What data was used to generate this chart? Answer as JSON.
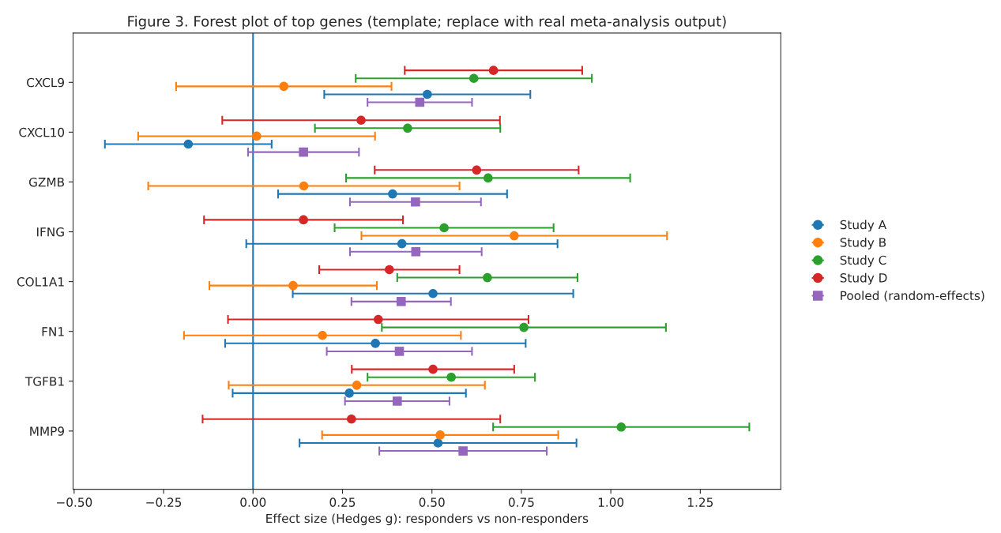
{
  "chart_data": {
    "type": "scatter",
    "orientation": "horizontal",
    "title": "Figure 3. Forest plot of top genes (template; replace with real meta-analysis output)",
    "xlabel": "Effect size (Hedges g): responders vs non-responders",
    "categories": [
      "CXCL9",
      "CXCL10",
      "GZMB",
      "IFNG",
      "COL1A1",
      "FN1",
      "TGFB1",
      "MMP9"
    ],
    "series": [
      {
        "name": "Study A",
        "color": "#1f77b4",
        "marker": "circle",
        "values": [
          0.487,
          -0.181,
          0.39,
          0.416,
          0.503,
          0.342,
          0.269,
          0.517
        ],
        "errors": [
          0.288,
          0.233,
          0.32,
          0.435,
          0.392,
          0.42,
          0.326,
          0.387
        ]
      },
      {
        "name": "Study B",
        "color": "#ff7f0e",
        "marker": "circle",
        "values": [
          0.086,
          0.01,
          0.142,
          0.73,
          0.112,
          0.194,
          0.29,
          0.523
        ],
        "errors": [
          0.301,
          0.331,
          0.435,
          0.427,
          0.234,
          0.387,
          0.358,
          0.33
        ]
      },
      {
        "name": "Study C",
        "color": "#2ca02c",
        "marker": "circle",
        "values": [
          0.617,
          0.432,
          0.657,
          0.534,
          0.655,
          0.757,
          0.554,
          1.029
        ],
        "errors": [
          0.33,
          0.259,
          0.397,
          0.306,
          0.252,
          0.397,
          0.234,
          0.358
        ]
      },
      {
        "name": "Study D",
        "color": "#d62728",
        "marker": "circle",
        "values": [
          0.672,
          0.302,
          0.625,
          0.141,
          0.381,
          0.35,
          0.503,
          0.275
        ],
        "errors": [
          0.248,
          0.388,
          0.285,
          0.278,
          0.196,
          0.42,
          0.227,
          0.416
        ]
      },
      {
        "name": "Pooled (random-effects)",
        "color": "#9467bd",
        "marker": "square",
        "values": [
          0.466,
          0.141,
          0.454,
          0.455,
          0.414,
          0.409,
          0.403,
          0.587
        ],
        "errors": [
          0.146,
          0.155,
          0.183,
          0.184,
          0.139,
          0.203,
          0.146,
          0.234
        ]
      }
    ],
    "xlim": [
      -0.503,
      1.475
    ],
    "xticks": [
      {
        "value": -0.5,
        "label": "−0.50"
      },
      {
        "value": -0.25,
        "label": "−0.25"
      },
      {
        "value": 0,
        "label": "0.00"
      },
      {
        "value": 0.25,
        "label": "0.25"
      },
      {
        "value": 0.5,
        "label": "0.50"
      },
      {
        "value": 0.75,
        "label": "0.75"
      },
      {
        "value": 1.0,
        "label": "1.00"
      },
      {
        "value": 1.25,
        "label": "1.25"
      }
    ],
    "ref_lines": [
      {
        "axis": "x",
        "value": 0,
        "color": "#1f77b4"
      }
    ],
    "grid": false,
    "legend": "right"
  }
}
